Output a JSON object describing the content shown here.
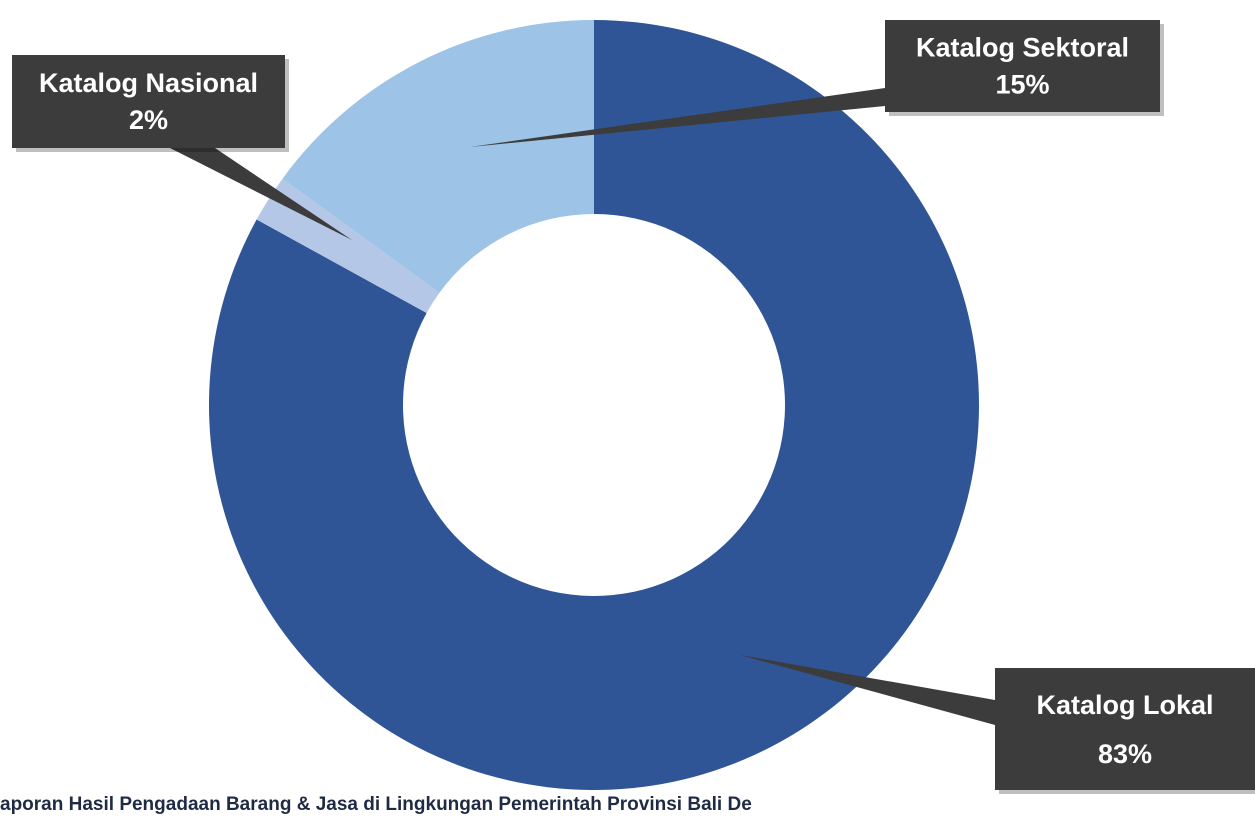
{
  "chart_data": {
    "type": "donut",
    "categories": [
      "Katalog Lokal",
      "Katalog Nasional",
      "Katalog Sektoral"
    ],
    "values": [
      83,
      2,
      15
    ],
    "value_labels": [
      "83%",
      "2%",
      "15%"
    ],
    "colors": [
      "#2f5597",
      "#b4c7e7",
      "#9dc3e6"
    ],
    "caption": "aporan Hasil Pengadaan Barang & Jasa di Lingkungan Pemerintah Provinsi Bali  De"
  }
}
